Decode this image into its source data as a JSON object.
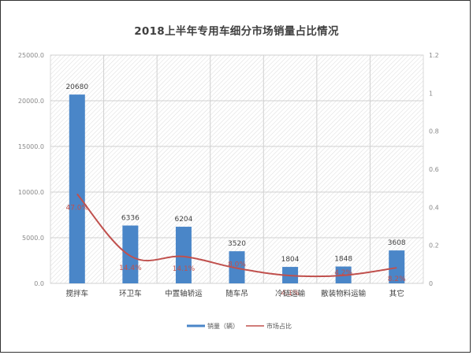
{
  "title": "2018上半年专用车细分市场销量占比情况",
  "chart_data": {
    "type": "bar+line",
    "title": "2018上半年专用车细分市场销量占比情况",
    "categories": [
      "搅拌车",
      "环卫车",
      "中置轴轿运",
      "随车吊",
      "冷链运输",
      "散装物料运输",
      "其它"
    ],
    "series": [
      {
        "name": "销量（辆）",
        "type": "bar",
        "axis": "left",
        "color": "#4a86c8",
        "values": [
          20680,
          6336,
          6204,
          3520,
          1804,
          1848,
          3608
        ],
        "labels": [
          "20680",
          "6336",
          "6204",
          "3520",
          "1804",
          "1848",
          "3608"
        ]
      },
      {
        "name": "市场占比",
        "type": "line",
        "axis": "right",
        "color": "#c0504d",
        "values": [
          0.47,
          0.144,
          0.141,
          0.08,
          0.041,
          0.042,
          0.082
        ],
        "labels": [
          "47.0%",
          "14.4%",
          "14.1%",
          "8.0%",
          "4.1%",
          "4.2%",
          "8.2%"
        ]
      }
    ],
    "left_axis": {
      "ylim": [
        0,
        25000
      ],
      "ticks": [
        "0.0",
        "5000.0",
        "10000.0",
        "15000.0",
        "20000.0",
        "25000.0"
      ]
    },
    "right_axis": {
      "ylim": [
        0,
        1.2
      ],
      "ticks": [
        "0",
        "0.2",
        "0.4",
        "0.6",
        "0.8",
        "1",
        "1.2"
      ]
    },
    "grid": true,
    "legend_position": "bottom"
  },
  "legend": {
    "bar_label": "销量（辆）",
    "line_label": "市场占比"
  }
}
